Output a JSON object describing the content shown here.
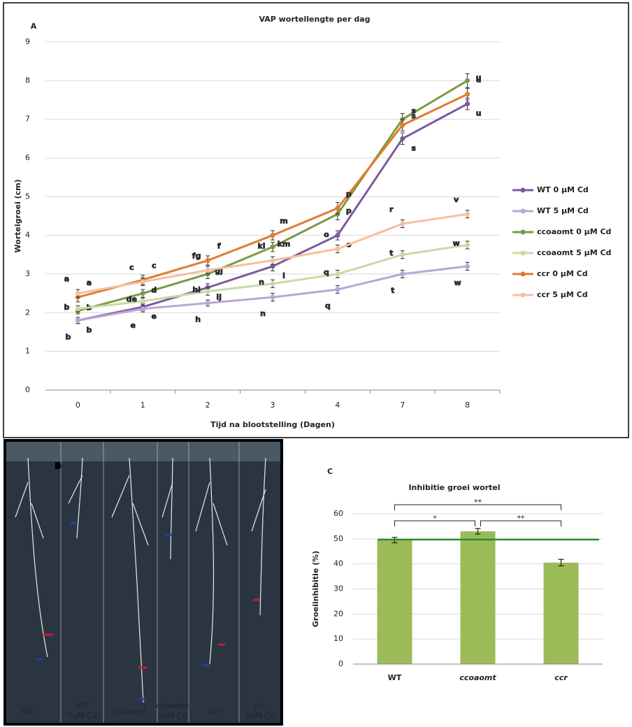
{
  "chart_data": [
    {
      "type": "line",
      "panel": "A",
      "title": "VAP wortellengte per dag",
      "x_label": "Tijd na blootstelling (Dagen)",
      "y_label": "Wortelgroei (cm)",
      "categories": [
        "0",
        "1",
        "2",
        "3",
        "4",
        "7",
        "8"
      ],
      "ylim": [
        0,
        9
      ],
      "yticks": [
        0,
        1,
        2,
        3,
        4,
        5,
        6,
        7,
        8,
        9
      ],
      "grid": true,
      "legend": "right",
      "series": [
        {
          "name": "WT 0 µM Cd",
          "color": "#7b5a9c",
          "values": [
            1.8,
            2.15,
            2.65,
            3.2,
            4.0,
            6.5,
            7.4
          ],
          "errors": [
            0.08,
            0.1,
            0.1,
            0.12,
            0.12,
            0.15,
            0.15
          ],
          "letters": [
            "b",
            "e",
            "ij",
            "l",
            "o",
            "s",
            "u"
          ]
        },
        {
          "name": "WT 5 µM Cd",
          "color": "#b9a6d9",
          "values": [
            1.8,
            2.1,
            2.25,
            2.4,
            2.6,
            3.0,
            3.2
          ],
          "errors": [
            0.08,
            0.08,
            0.08,
            0.1,
            0.1,
            0.1,
            0.1
          ],
          "letters": [
            "b",
            "e",
            "h",
            "n",
            "q",
            "t",
            "w"
          ]
        },
        {
          "name": "ccoaomt 0 µM Cd",
          "color": "#7a9a44",
          "values": [
            2.05,
            2.5,
            3.0,
            3.7,
            4.55,
            7.0,
            8.0
          ],
          "errors": [
            0.08,
            0.1,
            0.12,
            0.12,
            0.15,
            0.15,
            0.18
          ],
          "letters": [
            "b",
            "d",
            "gj",
            "km",
            "p",
            "s",
            "u"
          ]
        },
        {
          "name": "ccoaomt 5 µM Cd",
          "color": "#c9dba4",
          "values": [
            2.1,
            2.3,
            2.55,
            2.75,
            3.0,
            3.5,
            3.75
          ],
          "errors": [
            0.08,
            0.08,
            0.1,
            0.1,
            0.1,
            0.1,
            0.1
          ],
          "letters": [
            "b",
            "de",
            "hi",
            "n",
            "q",
            "t",
            "w"
          ]
        },
        {
          "name": "ccr 0 µM Cd",
          "color": "#e07b2e",
          "values": [
            2.4,
            2.85,
            3.35,
            4.0,
            4.7,
            6.85,
            7.65
          ],
          "errors": [
            0.12,
            0.12,
            0.12,
            0.12,
            0.15,
            0.15,
            0.15
          ],
          "letters": [
            "a",
            "c",
            "f",
            "m",
            "p",
            "s",
            "u"
          ]
        },
        {
          "name": "ccr 5 µM Cd",
          "color": "#f5bfa0",
          "values": [
            2.5,
            2.8,
            3.1,
            3.35,
            3.65,
            4.3,
            4.55
          ],
          "errors": [
            0.1,
            0.1,
            0.1,
            0.1,
            0.1,
            0.1,
            0.1
          ],
          "letters": [
            "a",
            "c",
            "fg",
            "kl",
            "o",
            "r",
            "v"
          ]
        }
      ]
    },
    {
      "type": "bar",
      "panel": "C",
      "title": "Inhibitie groei wortel",
      "y_label": "Groeiinhibitie (%)",
      "categories": [
        "WT",
        "ccoaomt",
        "ccr"
      ],
      "values": [
        49.5,
        53,
        40.5
      ],
      "errors": [
        1.1,
        1.1,
        1.3
      ],
      "color": "#9bbb59",
      "ylim": [
        0,
        60
      ],
      "yticks": [
        0,
        10,
        20,
        30,
        40,
        50,
        60
      ],
      "grid": true,
      "reference_line": {
        "value": 49.7,
        "color": "#2e8b2e"
      },
      "significance": [
        {
          "label": "**",
          "from": 0,
          "to": 2
        },
        {
          "label": "*",
          "from": 0,
          "to": 1
        },
        {
          "label": "**",
          "from": 1,
          "to": 2
        }
      ]
    }
  ],
  "photo": {
    "panel": "B",
    "captions": [
      [
        "WT"
      ],
      [
        "WT",
        "5µM Cd"
      ],
      [
        "ccoaomt"
      ],
      [
        "ccoaomt",
        "5µM Cd"
      ],
      [
        "ccr"
      ],
      [
        "ccr",
        "5µM Cd"
      ]
    ]
  }
}
